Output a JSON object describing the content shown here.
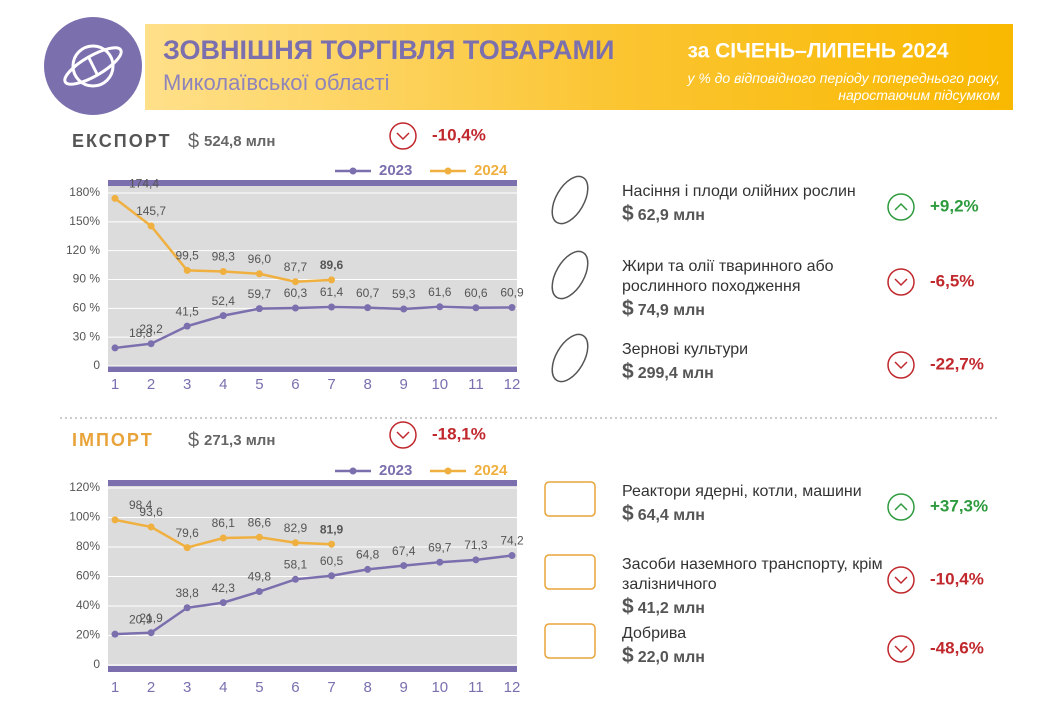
{
  "header": {
    "title": "ЗОВНІШНЯ ТОРГІВЛЯ ТОВАРАМИ",
    "subtitle": "Миколаївської області",
    "period": "за СІЧЕНЬ–ЛИПЕНЬ 2024",
    "note": "у % до відповідного періоду попереднього року, наростаючим підсумком"
  },
  "export": {
    "label": "ЕКСПОРТ",
    "currency": "$",
    "amount": "524,8 млн",
    "change": "-10,4%",
    "items": [
      {
        "name": "Насіння і плоди олійних рослин",
        "currency": "$",
        "amount": "62,9 млн",
        "change": "+9,2%"
      },
      {
        "name": "Жири та олії тваринного або рослинного походження",
        "currency": "$",
        "amount": "74,9 млн",
        "change": "-6,5%"
      },
      {
        "name": "Зернові культури",
        "currency": "$",
        "amount": "299,4 млн",
        "change": "-22,7%"
      }
    ]
  },
  "import": {
    "label": "ІМПОРТ",
    "currency": "$",
    "amount": "271,3 млн",
    "change": "-18,1%",
    "items": [
      {
        "name": "Реактори ядерні, котли, машини",
        "currency": "$",
        "amount": "64,4 млн",
        "change": "+37,3%"
      },
      {
        "name": "Засоби наземного транспорту, крім залізничного",
        "currency": "$",
        "amount": "41,2 млн",
        "change": "-10,4%"
      },
      {
        "name": "Добрива",
        "currency": "$",
        "amount": "22,0 млн",
        "change": "-48,6%"
      }
    ]
  },
  "chart_data": [
    {
      "type": "line",
      "categories": [
        "1",
        "2",
        "3",
        "4",
        "5",
        "6",
        "7",
        "8",
        "9",
        "10",
        "11",
        "12"
      ],
      "ylim": [
        0,
        180
      ],
      "yticks": [
        0,
        {
          "value": 30,
          "label": "30 %"
        },
        {
          "value": 60,
          "label": "60 %"
        },
        {
          "value": 90,
          "label": "90 %"
        },
        {
          "value": 120,
          "label": "120 %"
        },
        {
          "value": 150,
          "label": "150%"
        },
        {
          "value": 180,
          "label": "180%"
        }
      ],
      "series": [
        {
          "name": "2023",
          "color": "#7b6fae",
          "values": [
            18.8,
            23.2,
            41.5,
            52.4,
            59.7,
            60.3,
            61.4,
            60.7,
            59.3,
            61.6,
            60.6,
            60.9
          ],
          "value_labels": [
            "18,8",
            "23,2",
            "41,5",
            "52,4",
            "59,7",
            "60,3",
            "61,4",
            "60,7",
            "59,3",
            "61,6",
            "60,6",
            "60,9"
          ]
        },
        {
          "name": "2024",
          "color": "#f0b040",
          "values": [
            174.4,
            145.7,
            99.5,
            98.3,
            96.0,
            87.7,
            89.6,
            null,
            null,
            null,
            null,
            null
          ],
          "value_labels": [
            "174,4",
            "145,7",
            "99,5",
            "98,3",
            "96,0",
            "87,7",
            "89,6",
            null,
            null,
            null,
            null,
            null
          ]
        }
      ]
    },
    {
      "type": "line",
      "categories": [
        "1",
        "2",
        "3",
        "4",
        "5",
        "6",
        "7",
        "8",
        "9",
        "10",
        "11",
        "12"
      ],
      "ylim": [
        0,
        120
      ],
      "yticks": [
        0,
        {
          "value": 20,
          "label": "20%"
        },
        {
          "value": 40,
          "label": "40%"
        },
        {
          "value": 60,
          "label": "60%"
        },
        {
          "value": 80,
          "label": "80%"
        },
        {
          "value": 100,
          "label": "100%"
        },
        {
          "value": 120,
          "label": "120%"
        }
      ],
      "series": [
        {
          "name": "2023",
          "color": "#7b6fae",
          "values": [
            20.9,
            21.9,
            38.8,
            42.3,
            49.8,
            58.1,
            60.5,
            64.8,
            67.4,
            69.7,
            71.3,
            74.2
          ],
          "value_labels": [
            "20,9",
            "21,9",
            "38,8",
            "42,3",
            "49,8",
            "58,1",
            "60,5",
            "64,8",
            "67,4",
            "69,7",
            "71,3",
            "74,2"
          ]
        },
        {
          "name": "2024",
          "color": "#f0b040",
          "values": [
            98.4,
            93.6,
            79.6,
            86.1,
            86.6,
            82.9,
            81.9,
            null,
            null,
            null,
            null,
            null
          ],
          "value_labels": [
            "98,4",
            "93,6",
            "79,6",
            "86,1",
            "86,6",
            "82,9",
            "81,9",
            null,
            null,
            null,
            null,
            null
          ]
        }
      ]
    }
  ]
}
